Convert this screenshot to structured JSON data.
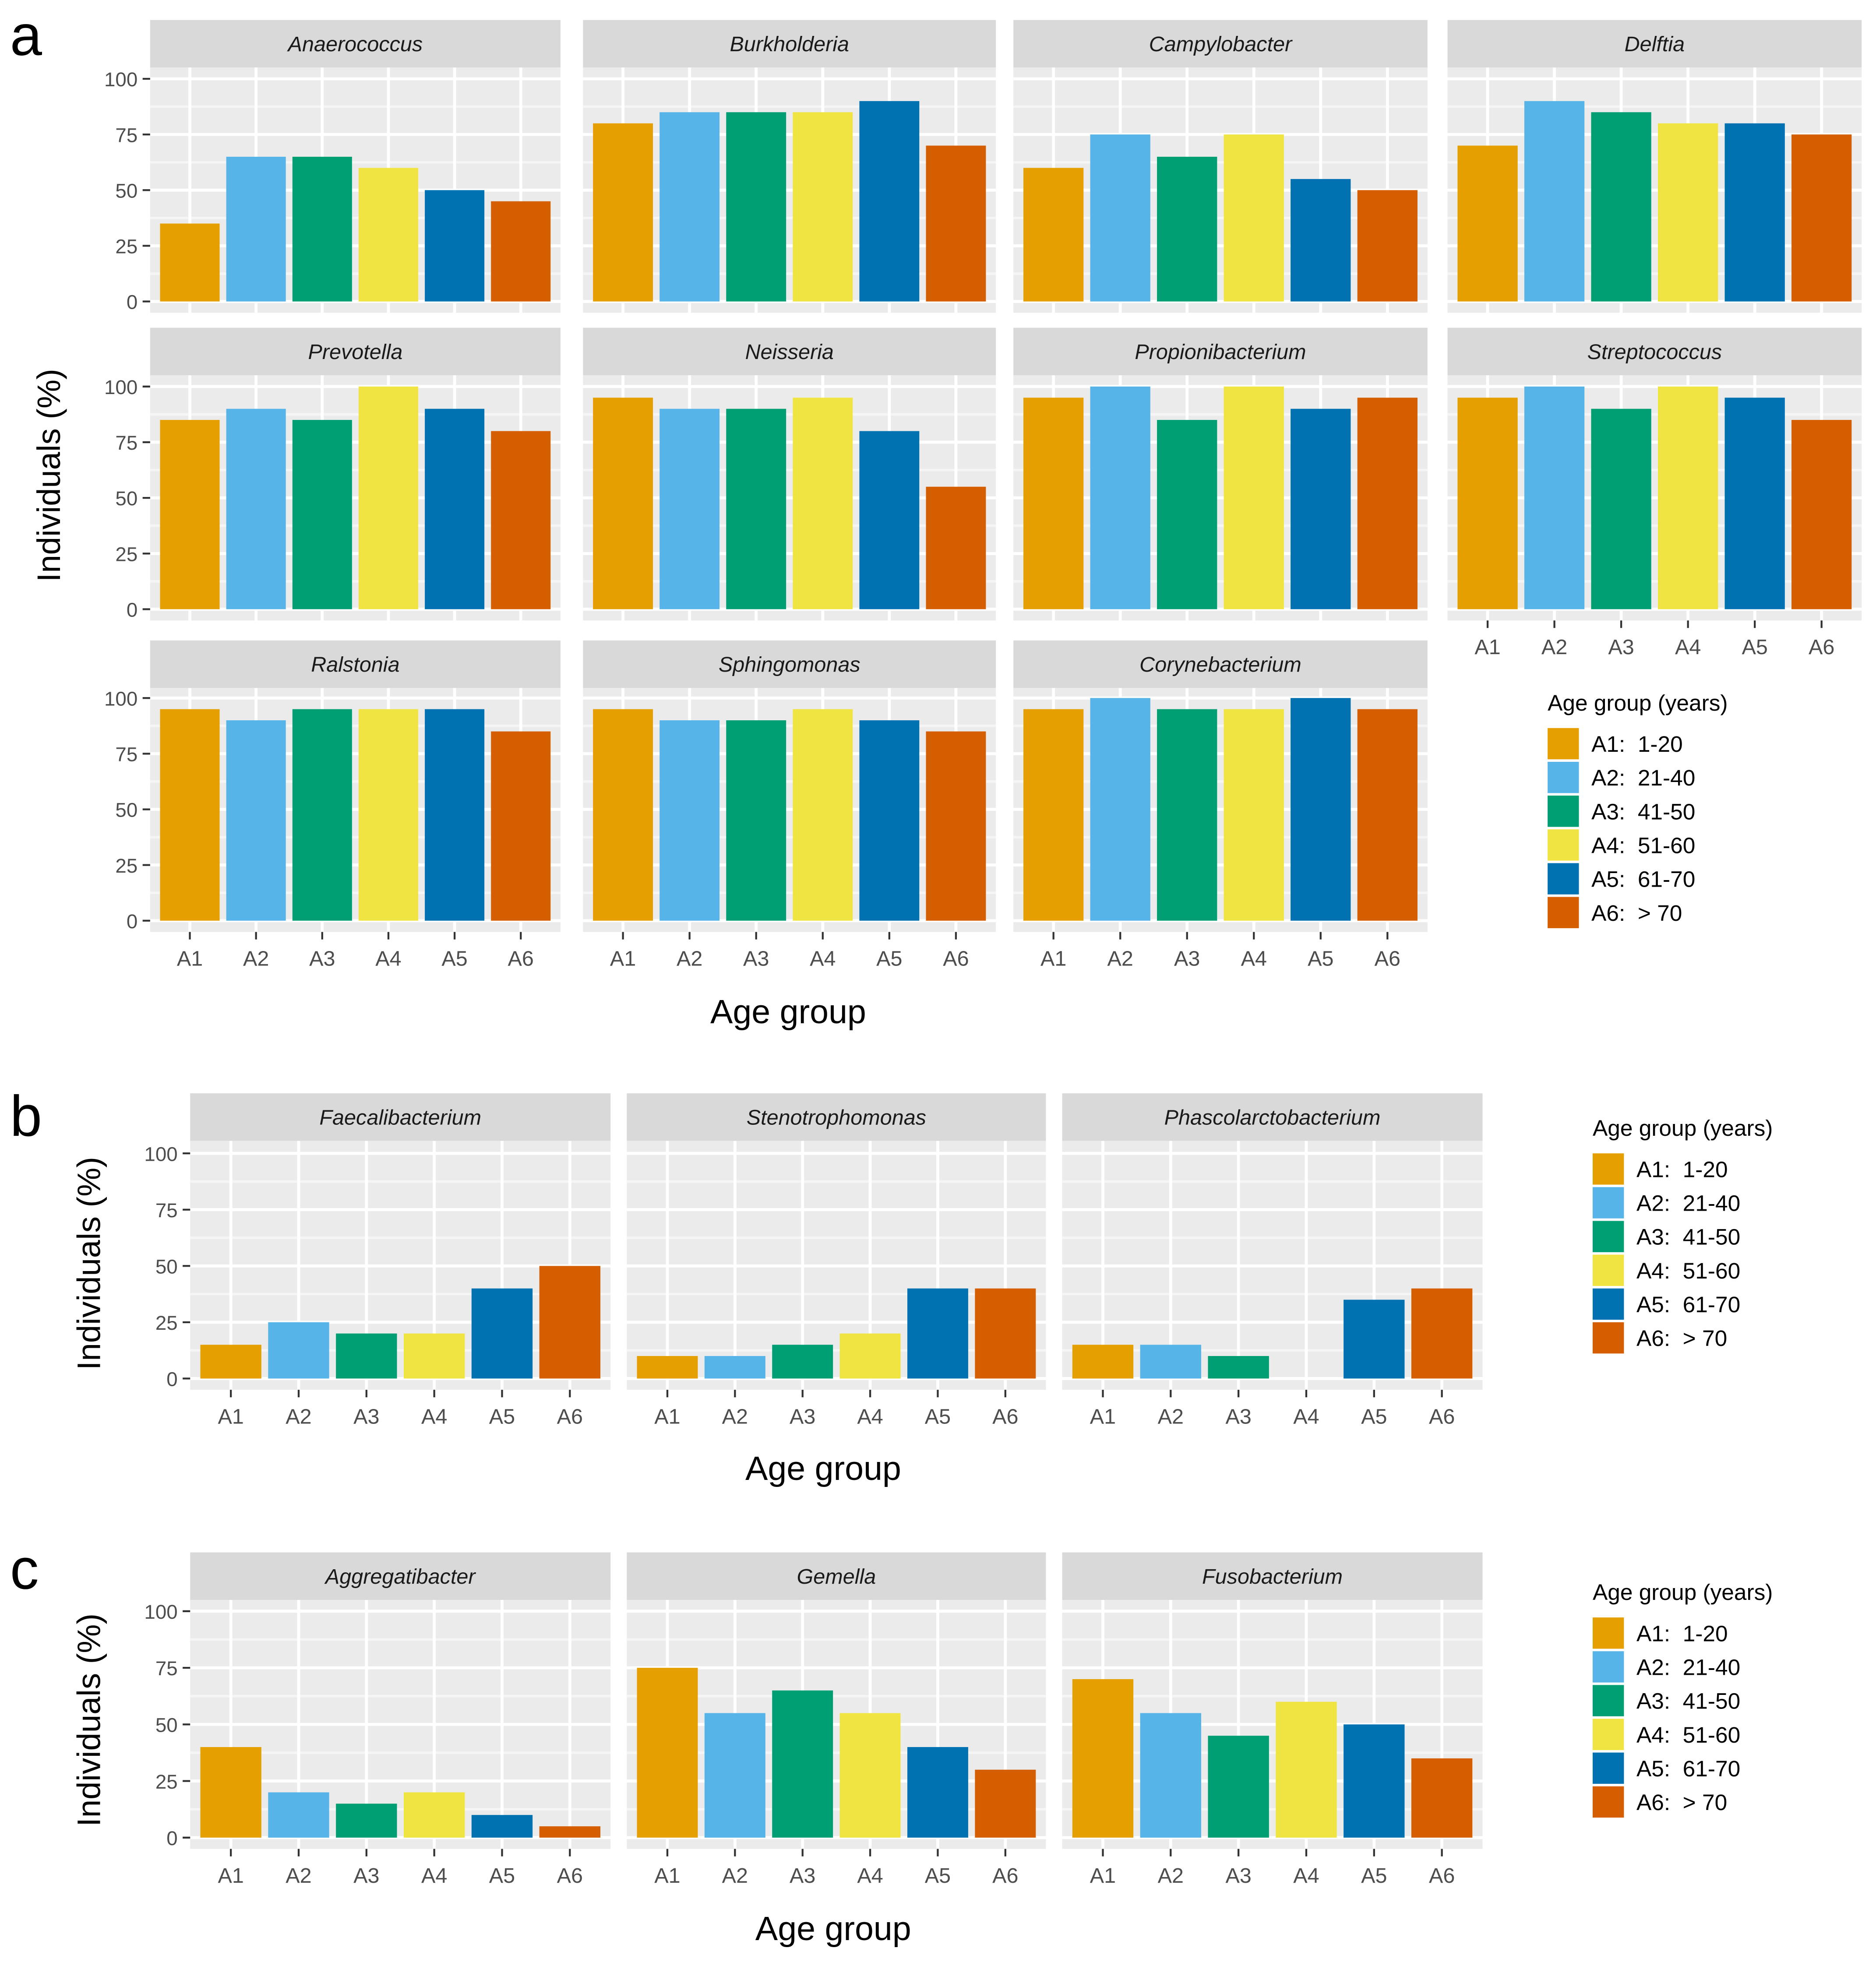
{
  "axes": {
    "ylabel": "Individuals (%)",
    "xlabel": "Age group",
    "categories": [
      "A1",
      "A2",
      "A3",
      "A4",
      "A5",
      "A6"
    ],
    "yticks": [
      0,
      25,
      50,
      75,
      100
    ],
    "ytick_labels": [
      "0",
      "25",
      "50",
      "75",
      "100"
    ]
  },
  "legend": {
    "title": "Age group (years)",
    "entries": [
      {
        "label": "A1:  1-20",
        "color": "#E69F00"
      },
      {
        "label": "A2:  21-40",
        "color": "#56B4E9"
      },
      {
        "label": "A3:  41-50",
        "color": "#009E73"
      },
      {
        "label": "A4:  51-60",
        "color": "#F0E442"
      },
      {
        "label": "A5:  61-70",
        "color": "#0072B2"
      },
      {
        "label": "A6:  > 70",
        "color": "#D55E00"
      }
    ]
  },
  "panel_labels": {
    "a": "a",
    "b": "b",
    "c": "c"
  },
  "chart_data": [
    {
      "type": "bar",
      "panel": "a",
      "ylabel": "Individuals (%)",
      "xlabel": "Age group",
      "ylim": [
        0,
        100
      ],
      "categories": [
        "A1",
        "A2",
        "A3",
        "A4",
        "A5",
        "A6"
      ],
      "facets": [
        {
          "title": "Anaerococcus",
          "values": [
            35,
            65,
            65,
            60,
            50,
            45
          ]
        },
        {
          "title": "Burkholderia",
          "values": [
            80,
            85,
            85,
            85,
            90,
            70
          ]
        },
        {
          "title": "Campylobacter",
          "values": [
            60,
            75,
            65,
            75,
            55,
            50
          ]
        },
        {
          "title": "Delftia",
          "values": [
            70,
            90,
            85,
            80,
            80,
            75
          ]
        },
        {
          "title": "Prevotella",
          "values": [
            85,
            90,
            85,
            100,
            90,
            80
          ]
        },
        {
          "title": "Neisseria",
          "values": [
            95,
            90,
            90,
            95,
            80,
            55
          ]
        },
        {
          "title": "Propionibacterium",
          "values": [
            95,
            100,
            85,
            100,
            90,
            95
          ]
        },
        {
          "title": "Streptococcus",
          "values": [
            95,
            100,
            90,
            100,
            95,
            85
          ]
        },
        {
          "title": "Ralstonia",
          "values": [
            95,
            90,
            95,
            95,
            95,
            85
          ]
        },
        {
          "title": "Sphingomonas",
          "values": [
            95,
            90,
            90,
            95,
            90,
            85
          ]
        },
        {
          "title": "Corynebacterium",
          "values": [
            95,
            100,
            95,
            95,
            100,
            95
          ]
        }
      ]
    },
    {
      "type": "bar",
      "panel": "b",
      "ylabel": "Individuals (%)",
      "xlabel": "Age group",
      "ylim": [
        0,
        100
      ],
      "categories": [
        "A1",
        "A2",
        "A3",
        "A4",
        "A5",
        "A6"
      ],
      "facets": [
        {
          "title": "Faecalibacterium",
          "values": [
            15,
            25,
            20,
            20,
            40,
            50
          ]
        },
        {
          "title": "Stenotrophomonas",
          "values": [
            10,
            10,
            15,
            20,
            40,
            40
          ]
        },
        {
          "title": "Phascolarctobacterium",
          "values": [
            15,
            15,
            10,
            0,
            35,
            40
          ]
        }
      ]
    },
    {
      "type": "bar",
      "panel": "c",
      "ylabel": "Individuals (%)",
      "xlabel": "Age group",
      "ylim": [
        0,
        100
      ],
      "categories": [
        "A1",
        "A2",
        "A3",
        "A4",
        "A5",
        "A6"
      ],
      "facets": [
        {
          "title": "Aggregatibacter",
          "values": [
            40,
            20,
            15,
            20,
            10,
            5
          ]
        },
        {
          "title": "Gemella",
          "values": [
            75,
            55,
            65,
            55,
            40,
            30
          ]
        },
        {
          "title": "Fusobacterium",
          "values": [
            70,
            55,
            45,
            60,
            50,
            35
          ]
        }
      ]
    }
  ]
}
